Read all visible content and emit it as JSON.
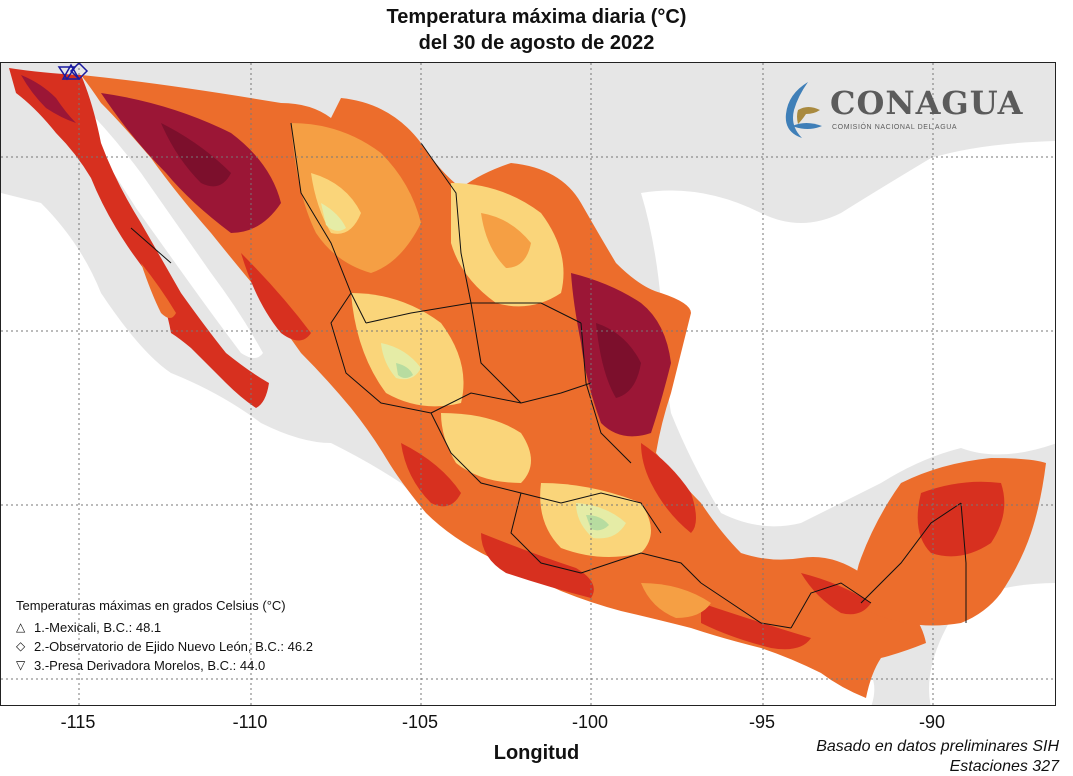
{
  "title": {
    "line1": "Temperatura máxima diaria (°C)",
    "line2": "del 30 de agosto de 2022"
  },
  "x_axis": {
    "label": "Longitud",
    "ticks": [
      "-115",
      "-110",
      "-105",
      "-100",
      "-95",
      "-90"
    ]
  },
  "source_note": "Basado en datos preliminares SIH",
  "source_note_2": "Estaciones 327",
  "logo": {
    "name": "CONAGUA",
    "subtitle": "COMISIÓN NACIONAL DEL AGUA"
  },
  "legend": {
    "title": "Temperaturas máximas en grados Celsius (°C)",
    "items": [
      {
        "symbol": "△",
        "text": "1.-Mexicali, B.C.: 48.1"
      },
      {
        "symbol": "◇",
        "text": "2.-Observatorio de Ejido Nuevo León, B.C.: 46.2"
      },
      {
        "symbol": "▽",
        "text": "3.-Presa Derivadora Morelos, B.C.: 44.0"
      }
    ]
  },
  "colors": {
    "land_outside": "#e6e6e6",
    "sea": "#ffffff",
    "very_hot": "#9b1636",
    "hot": "#d7301f",
    "warm": "#ec6d2c",
    "mild": "#f59f44",
    "cool": "#fad57a",
    "coolest": "#e5eca6",
    "green_spot": "#b7dca0"
  }
}
